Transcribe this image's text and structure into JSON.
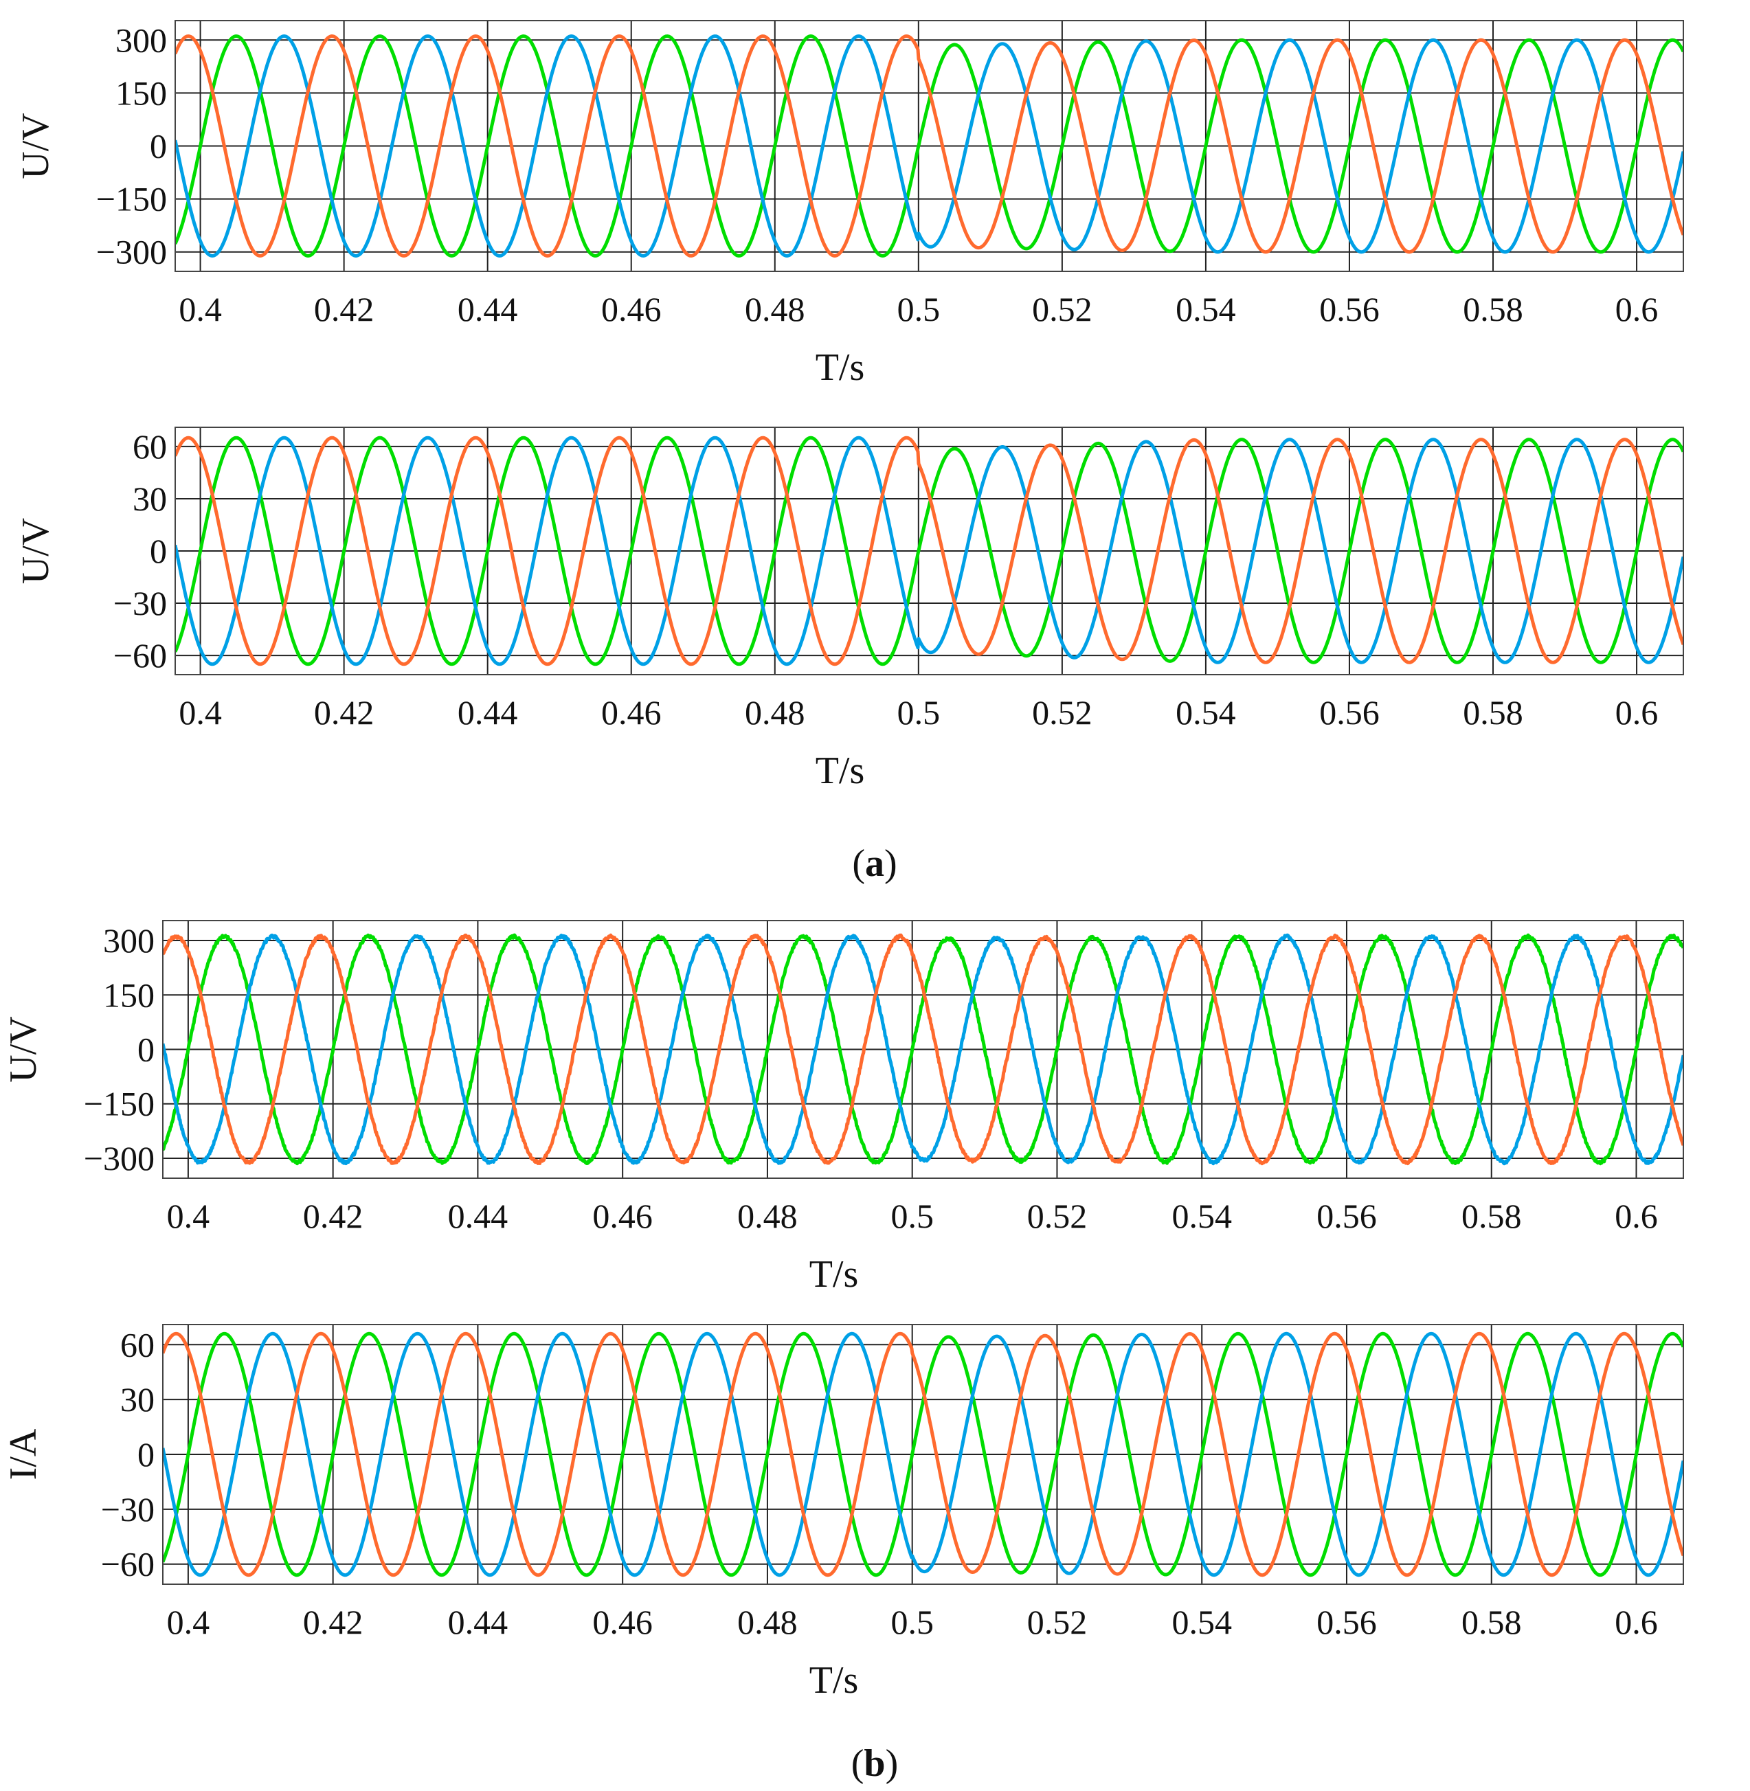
{
  "colors": {
    "phase_a": "#00dd00",
    "phase_b": "#00a0e6",
    "phase_c": "#ff6a2e",
    "grid": "#222222"
  },
  "labels": {
    "a_open": "(",
    "a_letter": "a",
    "a_close": ")",
    "b_open": "(",
    "b_letter": "b",
    "b_close": ")"
  },
  "chart_data": [
    {
      "type": "line",
      "group": "a",
      "xlabel": "T/s",
      "ylabel": "U/V",
      "xlim": [
        0.3965,
        0.6065
      ],
      "ylim": [
        -355,
        355
      ],
      "xticks": [
        0.4,
        0.42,
        0.44,
        0.46,
        0.48,
        0.5,
        0.52,
        0.54,
        0.56,
        0.58,
        0.6
      ],
      "xticklabels": [
        "0.4",
        "0.42",
        "0.44",
        "0.46",
        "0.48",
        "0.5",
        "0.52",
        "0.54",
        "0.56",
        "0.58",
        "0.6"
      ],
      "yticks": [
        300,
        150,
        0,
        -150,
        -300
      ],
      "yticklabels": [
        "300",
        "150",
        "0",
        "−150",
        "−300"
      ],
      "grid": true,
      "frequency_hz": 50,
      "noise": 0,
      "series": [
        {
          "phase_deg": 0,
          "amplitude_before": 311,
          "amplitude_after": 285,
          "amplitude_final": 300
        },
        {
          "phase_deg": -120,
          "amplitude_before": 311,
          "amplitude_after": 285,
          "amplitude_final": 300
        },
        {
          "phase_deg": 120,
          "amplitude_before": 311,
          "amplitude_after": 285,
          "amplitude_final": 300
        }
      ],
      "disturbance_time": 0.5
    },
    {
      "type": "line",
      "group": "a",
      "xlabel": "T/s",
      "ylabel": "U/V",
      "xlim": [
        0.3965,
        0.6065
      ],
      "ylim": [
        -71,
        71
      ],
      "xticks": [
        0.4,
        0.42,
        0.44,
        0.46,
        0.48,
        0.5,
        0.52,
        0.54,
        0.56,
        0.58,
        0.6
      ],
      "xticklabels": [
        "0.4",
        "0.42",
        "0.44",
        "0.46",
        "0.48",
        "0.5",
        "0.52",
        "0.54",
        "0.56",
        "0.58",
        "0.6"
      ],
      "yticks": [
        60,
        30,
        0,
        -30,
        -60
      ],
      "yticklabels": [
        "60",
        "30",
        "0",
        "−30",
        "−60"
      ],
      "grid": true,
      "frequency_hz": 50,
      "noise": 0,
      "series": [
        {
          "phase_deg": 0,
          "amplitude_before": 65,
          "amplitude_after": 58,
          "amplitude_final": 64
        },
        {
          "phase_deg": -120,
          "amplitude_before": 65,
          "amplitude_after": 58,
          "amplitude_final": 64
        },
        {
          "phase_deg": 120,
          "amplitude_before": 65,
          "amplitude_after": 58,
          "amplitude_final": 64
        }
      ],
      "disturbance_time": 0.5
    },
    {
      "type": "line",
      "group": "b",
      "xlabel": "T/s",
      "ylabel": "U/V",
      "xlim": [
        0.3965,
        0.6065
      ],
      "ylim": [
        -355,
        355
      ],
      "xticks": [
        0.4,
        0.42,
        0.44,
        0.46,
        0.48,
        0.5,
        0.52,
        0.54,
        0.56,
        0.58,
        0.6
      ],
      "xticklabels": [
        "0.4",
        "0.42",
        "0.44",
        "0.46",
        "0.48",
        "0.5",
        "0.52",
        "0.54",
        "0.56",
        "0.58",
        "0.6"
      ],
      "yticks": [
        300,
        150,
        0,
        -150,
        -300
      ],
      "yticklabels": [
        "300",
        "150",
        "0",
        "−150",
        "−300"
      ],
      "grid": true,
      "frequency_hz": 50,
      "noise": 8,
      "series": [
        {
          "phase_deg": 0,
          "amplitude_before": 311,
          "amplitude_after": 305,
          "amplitude_final": 311
        },
        {
          "phase_deg": -120,
          "amplitude_before": 311,
          "amplitude_after": 305,
          "amplitude_final": 311
        },
        {
          "phase_deg": 120,
          "amplitude_before": 311,
          "amplitude_after": 305,
          "amplitude_final": 311
        }
      ],
      "disturbance_time": 0.5
    },
    {
      "type": "line",
      "group": "b",
      "xlabel": "T/s",
      "ylabel": "I/A",
      "xlim": [
        0.3965,
        0.6065
      ],
      "ylim": [
        -71,
        71
      ],
      "xticks": [
        0.4,
        0.42,
        0.44,
        0.46,
        0.48,
        0.5,
        0.52,
        0.54,
        0.56,
        0.58,
        0.6
      ],
      "xticklabels": [
        "0.4",
        "0.42",
        "0.44",
        "0.46",
        "0.48",
        "0.5",
        "0.52",
        "0.54",
        "0.56",
        "0.58",
        "0.6"
      ],
      "yticks": [
        60,
        30,
        0,
        -30,
        -60
      ],
      "yticklabels": [
        "60",
        "30",
        "0",
        "−30",
        "−60"
      ],
      "grid": true,
      "frequency_hz": 50,
      "noise": 0,
      "series": [
        {
          "phase_deg": 0,
          "amplitude_before": 66,
          "amplitude_after": 64,
          "amplitude_final": 66
        },
        {
          "phase_deg": -120,
          "amplitude_before": 66,
          "amplitude_after": 64,
          "amplitude_final": 66
        },
        {
          "phase_deg": 120,
          "amplitude_before": 66,
          "amplitude_after": 64,
          "amplitude_final": 66
        }
      ],
      "disturbance_time": 0.5
    }
  ]
}
